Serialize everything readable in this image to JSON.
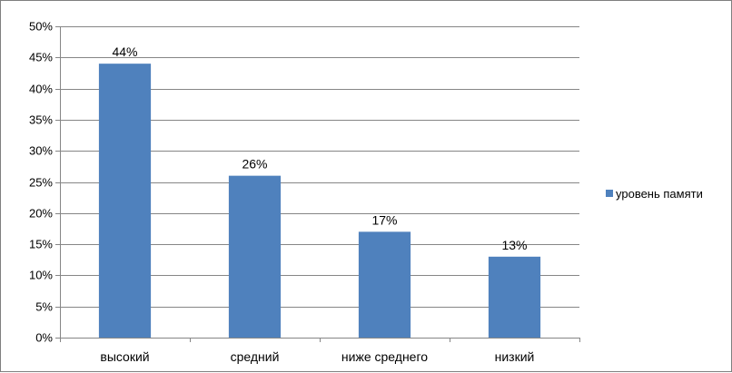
{
  "chart_data": {
    "type": "bar",
    "categories": [
      "высокий",
      "средний",
      "ниже среднего",
      "низкий"
    ],
    "series": [
      {
        "name": "уровень памяти",
        "values": [
          44,
          26,
          17,
          13
        ],
        "color": "#4f81bd"
      }
    ],
    "data_labels": [
      "44%",
      "26%",
      "17%",
      "13%"
    ],
    "y_ticks": [
      "0%",
      "5%",
      "10%",
      "15%",
      "20%",
      "25%",
      "30%",
      "35%",
      "40%",
      "45%",
      "50%"
    ],
    "ylim": [
      0,
      50
    ],
    "y_unit": "%",
    "grid": true,
    "legend_position": "right",
    "title": "",
    "xlabel": "",
    "ylabel": ""
  }
}
